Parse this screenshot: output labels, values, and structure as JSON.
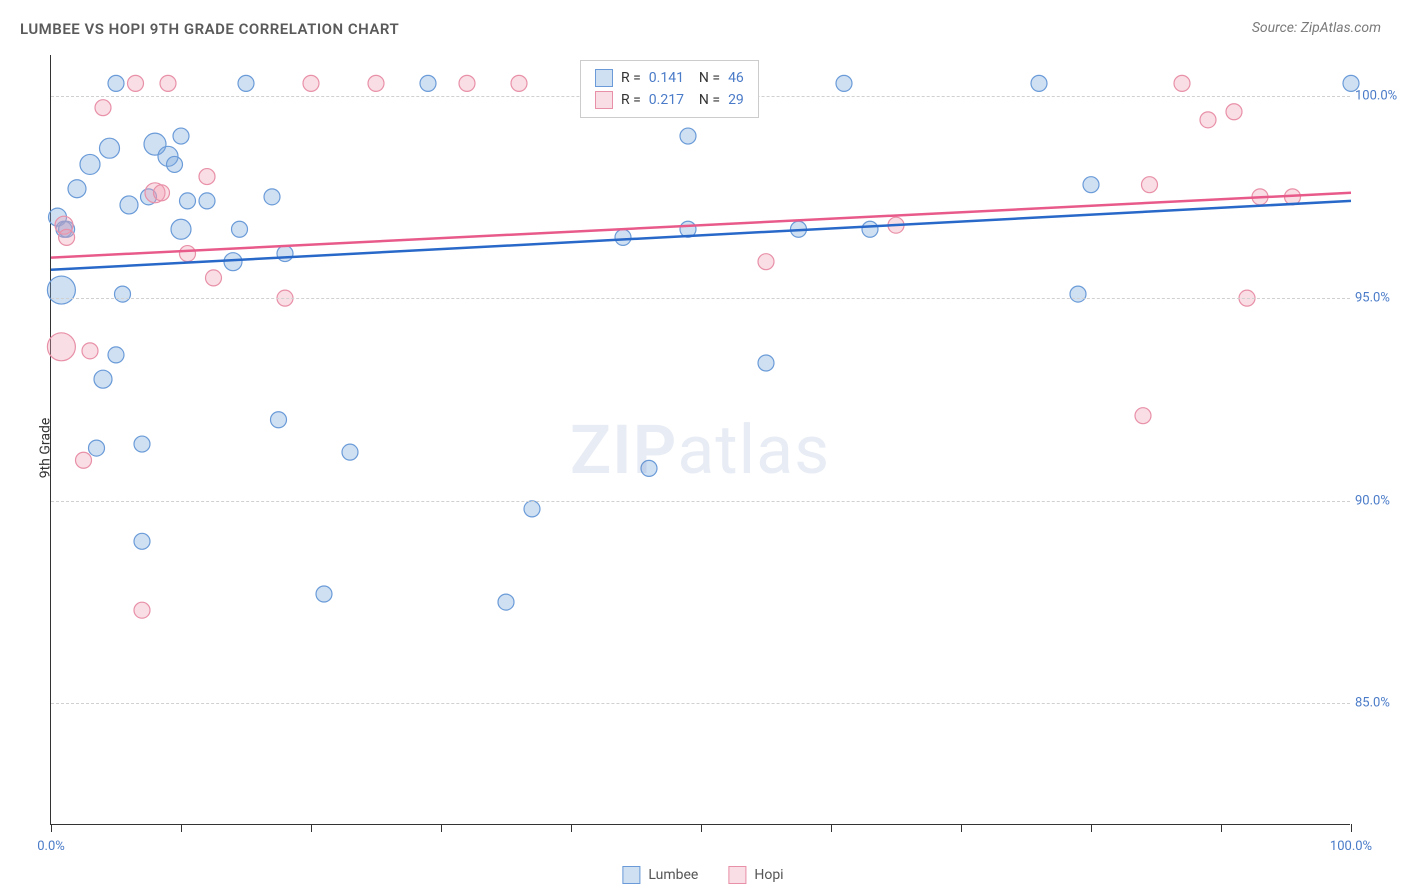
{
  "title": "LUMBEE VS HOPI 9TH GRADE CORRELATION CHART",
  "source": "Source: ZipAtlas.com",
  "y_axis_label": "9th Grade",
  "watermark_bold": "ZIP",
  "watermark_light": "atlas",
  "chart": {
    "type": "scatter",
    "xlim": [
      0,
      100
    ],
    "ylim": [
      82,
      101
    ],
    "x_tick_labels": {
      "0": "0.0%",
      "100": "100.0%"
    },
    "x_tick_positions": [
      0,
      10,
      20,
      30,
      40,
      50,
      60,
      70,
      80,
      90,
      100
    ],
    "y_ticks": [
      {
        "v": 85,
        "label": "85.0%"
      },
      {
        "v": 90,
        "label": "90.0%"
      },
      {
        "v": 95,
        "label": "95.0%"
      },
      {
        "v": 100,
        "label": "100.0%"
      }
    ],
    "grid_color": "#d0d0d0",
    "background_color": "#ffffff",
    "axis_color": "#333333",
    "tick_label_color": "#4a7bc8",
    "series": [
      {
        "name": "Lumbee",
        "fill": "rgba(120,165,220,0.35)",
        "stroke": "#6a9bd8",
        "line_stroke": "#2868c8",
        "line_width": 2.5,
        "R": "0.141",
        "N": "46",
        "regression": {
          "y1": 95.7,
          "y2": 97.4
        },
        "points": [
          {
            "x": 0.5,
            "y": 97.0,
            "r": 9
          },
          {
            "x": 0.8,
            "y": 95.2,
            "r": 14
          },
          {
            "x": 1.0,
            "y": 96.7,
            "r": 8
          },
          {
            "x": 1.2,
            "y": 96.7,
            "r": 8
          },
          {
            "x": 2.0,
            "y": 97.7,
            "r": 9
          },
          {
            "x": 3.0,
            "y": 98.3,
            "r": 10
          },
          {
            "x": 3.5,
            "y": 91.3,
            "r": 8
          },
          {
            "x": 4.0,
            "y": 93.0,
            "r": 9
          },
          {
            "x": 4.5,
            "y": 98.7,
            "r": 10
          },
          {
            "x": 5.0,
            "y": 93.6,
            "r": 8
          },
          {
            "x": 5.0,
            "y": 100.3,
            "r": 8
          },
          {
            "x": 5.5,
            "y": 95.1,
            "r": 8
          },
          {
            "x": 6.0,
            "y": 97.3,
            "r": 9
          },
          {
            "x": 7.0,
            "y": 89.0,
            "r": 8
          },
          {
            "x": 7.0,
            "y": 91.4,
            "r": 8
          },
          {
            "x": 7.5,
            "y": 97.5,
            "r": 8
          },
          {
            "x": 8.0,
            "y": 98.8,
            "r": 11
          },
          {
            "x": 9.0,
            "y": 98.5,
            "r": 10
          },
          {
            "x": 9.5,
            "y": 98.3,
            "r": 8
          },
          {
            "x": 10.0,
            "y": 96.7,
            "r": 10
          },
          {
            "x": 10.0,
            "y": 99.0,
            "r": 8
          },
          {
            "x": 10.5,
            "y": 97.4,
            "r": 8
          },
          {
            "x": 12.0,
            "y": 97.4,
            "r": 8
          },
          {
            "x": 14.0,
            "y": 95.9,
            "r": 9
          },
          {
            "x": 14.5,
            "y": 96.7,
            "r": 8
          },
          {
            "x": 15.0,
            "y": 100.3,
            "r": 8
          },
          {
            "x": 17.0,
            "y": 97.5,
            "r": 8
          },
          {
            "x": 17.5,
            "y": 92.0,
            "r": 8
          },
          {
            "x": 18.0,
            "y": 96.1,
            "r": 8
          },
          {
            "x": 21.0,
            "y": 87.7,
            "r": 8
          },
          {
            "x": 23.0,
            "y": 91.2,
            "r": 8
          },
          {
            "x": 29.0,
            "y": 100.3,
            "r": 8
          },
          {
            "x": 35.0,
            "y": 87.5,
            "r": 8
          },
          {
            "x": 37.0,
            "y": 89.8,
            "r": 8
          },
          {
            "x": 44.0,
            "y": 96.5,
            "r": 8
          },
          {
            "x": 46.0,
            "y": 90.8,
            "r": 8
          },
          {
            "x": 49.0,
            "y": 96.7,
            "r": 8
          },
          {
            "x": 49.0,
            "y": 99.0,
            "r": 8
          },
          {
            "x": 55.0,
            "y": 93.4,
            "r": 8
          },
          {
            "x": 57.5,
            "y": 96.7,
            "r": 8
          },
          {
            "x": 61.0,
            "y": 100.3,
            "r": 8
          },
          {
            "x": 63.0,
            "y": 96.7,
            "r": 8
          },
          {
            "x": 76.0,
            "y": 100.3,
            "r": 8
          },
          {
            "x": 79.0,
            "y": 95.1,
            "r": 8
          },
          {
            "x": 80.0,
            "y": 97.8,
            "r": 8
          },
          {
            "x": 100.0,
            "y": 100.3,
            "r": 8
          }
        ]
      },
      {
        "name": "Hopi",
        "fill": "rgba(240,160,180,0.35)",
        "stroke": "#e890a8",
        "line_stroke": "#e85a8a",
        "line_width": 2.5,
        "R": "0.217",
        "N": "29",
        "regression": {
          "y1": 96.0,
          "y2": 97.6
        },
        "points": [
          {
            "x": 0.8,
            "y": 93.8,
            "r": 14
          },
          {
            "x": 1.0,
            "y": 96.8,
            "r": 9
          },
          {
            "x": 1.2,
            "y": 96.5,
            "r": 8
          },
          {
            "x": 2.5,
            "y": 91.0,
            "r": 8
          },
          {
            "x": 3.0,
            "y": 93.7,
            "r": 8
          },
          {
            "x": 4.0,
            "y": 99.7,
            "r": 8
          },
          {
            "x": 6.5,
            "y": 100.3,
            "r": 8
          },
          {
            "x": 7.0,
            "y": 87.3,
            "r": 8
          },
          {
            "x": 8.0,
            "y": 97.6,
            "r": 10
          },
          {
            "x": 8.5,
            "y": 97.6,
            "r": 8
          },
          {
            "x": 9.0,
            "y": 100.3,
            "r": 8
          },
          {
            "x": 10.5,
            "y": 96.1,
            "r": 8
          },
          {
            "x": 12.0,
            "y": 98.0,
            "r": 8
          },
          {
            "x": 12.5,
            "y": 95.5,
            "r": 8
          },
          {
            "x": 18.0,
            "y": 95.0,
            "r": 8
          },
          {
            "x": 20.0,
            "y": 100.3,
            "r": 8
          },
          {
            "x": 25.0,
            "y": 100.3,
            "r": 8
          },
          {
            "x": 32.0,
            "y": 100.3,
            "r": 8
          },
          {
            "x": 36.0,
            "y": 100.3,
            "r": 8
          },
          {
            "x": 55.0,
            "y": 95.9,
            "r": 8
          },
          {
            "x": 65.0,
            "y": 96.8,
            "r": 8
          },
          {
            "x": 84.0,
            "y": 92.1,
            "r": 8
          },
          {
            "x": 84.5,
            "y": 97.8,
            "r": 8
          },
          {
            "x": 87.0,
            "y": 100.3,
            "r": 8
          },
          {
            "x": 89.0,
            "y": 99.4,
            "r": 8
          },
          {
            "x": 91.0,
            "y": 99.6,
            "r": 8
          },
          {
            "x": 92.0,
            "y": 95.0,
            "r": 8
          },
          {
            "x": 93.0,
            "y": 97.5,
            "r": 8
          },
          {
            "x": 95.5,
            "y": 97.5,
            "r": 8
          }
        ]
      }
    ]
  },
  "bottom_legend": [
    {
      "label": "Lumbee",
      "fill": "rgba(120,165,220,0.35)",
      "stroke": "#6a9bd8"
    },
    {
      "label": "Hopi",
      "fill": "rgba(240,160,180,0.35)",
      "stroke": "#e890a8"
    }
  ]
}
